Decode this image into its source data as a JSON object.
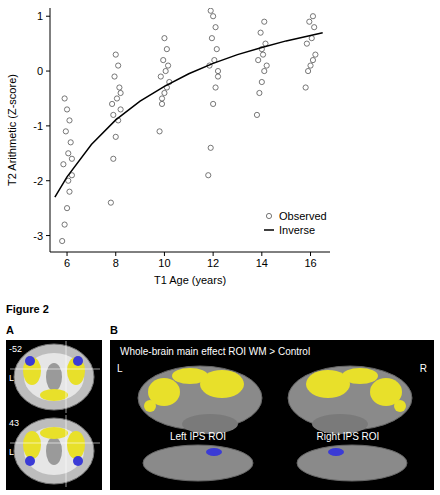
{
  "chart_data": {
    "type": "scatter",
    "x_label": "T1 Age (years)",
    "y_label": "T2 Arithmetic (Z-score)",
    "xlim": [
      5.3,
      16.8
    ],
    "xticks": [
      6,
      8,
      10,
      12,
      14,
      16
    ],
    "ylim": [
      -3.3,
      1.15
    ],
    "yticks": [
      -3,
      -2,
      -1,
      0,
      1
    ],
    "grid": false,
    "legend": "bottom-right",
    "series": [
      {
        "name": "Observed",
        "type": "scatter",
        "marker": "circle",
        "color": "#555555",
        "x": [
          5.8,
          5.9,
          6.0,
          6.1,
          6.2,
          5.85,
          6.05,
          6.15,
          5.95,
          6.1,
          6.0,
          5.9,
          6.2,
          6.05,
          7.8,
          7.9,
          8.0,
          8.1,
          8.2,
          7.85,
          8.05,
          8.15,
          7.95,
          8.1,
          8.0,
          7.9,
          8.2,
          9.8,
          9.9,
          10.0,
          10.1,
          10.2,
          9.85,
          10.05,
          10.15,
          9.95,
          10.1,
          10.0,
          9.9,
          11.8,
          11.9,
          12.0,
          12.1,
          12.2,
          11.85,
          12.05,
          12.15,
          11.95,
          12.1,
          12.0,
          11.9,
          12.2,
          13.8,
          13.9,
          14.0,
          14.1,
          14.2,
          13.85,
          14.05,
          14.15,
          13.95,
          14.1,
          14.0,
          15.8,
          15.9,
          16.0,
          16.1,
          16.2,
          15.85,
          16.05,
          16.15,
          15.95,
          16.1
        ],
        "values": [
          -3.1,
          -2.8,
          -2.5,
          -2.2,
          -1.9,
          -1.7,
          -1.5,
          -1.3,
          -1.1,
          -0.9,
          -0.7,
          -0.5,
          -1.6,
          -2.0,
          -2.4,
          -1.6,
          -1.2,
          -0.9,
          -0.7,
          -0.6,
          -0.5,
          -0.3,
          -0.1,
          0.1,
          0.3,
          -0.8,
          -0.4,
          -1.1,
          -0.6,
          -0.4,
          -0.3,
          -0.2,
          -0.1,
          0.0,
          0.1,
          0.2,
          0.4,
          0.6,
          -0.5,
          -1.9,
          -1.4,
          -0.6,
          -0.3,
          -0.1,
          0.1,
          0.2,
          0.4,
          0.6,
          0.8,
          1.0,
          1.1,
          0.0,
          -0.8,
          -0.4,
          -0.2,
          0.0,
          0.1,
          0.2,
          0.3,
          0.5,
          0.7,
          0.9,
          0.4,
          -0.3,
          0.0,
          0.1,
          0.2,
          0.3,
          0.5,
          0.6,
          0.8,
          0.9,
          1.0
        ]
      },
      {
        "name": "Inverse",
        "type": "line",
        "line_style": "solid",
        "color": "#000000",
        "x": [
          5.5,
          6,
          7,
          8,
          9,
          10,
          11,
          12,
          13,
          14,
          15,
          16,
          16.5
        ],
        "values": [
          -2.3,
          -1.93,
          -1.34,
          -0.89,
          -0.55,
          -0.28,
          -0.05,
          0.14,
          0.3,
          0.43,
          0.55,
          0.65,
          0.7
        ]
      }
    ]
  },
  "figure": {
    "caption": "Figure 2",
    "panels": [
      {
        "letter": "A",
        "slice_labels": [
          "-52",
          "43"
        ],
        "side_labels": [
          "L",
          "L"
        ]
      },
      {
        "letter": "B",
        "title": "Whole-brain main effect  ROI WM > Control",
        "hemisphere_labels": [
          "L",
          "R"
        ],
        "roi_labels": [
          "Left IPS ROI",
          "Right IPS ROI"
        ]
      }
    ]
  }
}
